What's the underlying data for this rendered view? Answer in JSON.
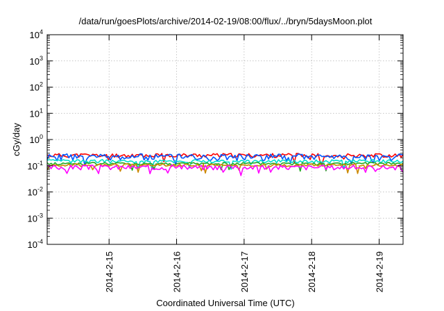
{
  "chart_data": {
    "type": "line",
    "title": "/data/run/goesPlots/archive/2014-02-19/08:00/flux/../bryn/5daysMoon.plot",
    "xlabel": "Coordinated Universal Time (UTC)",
    "ylabel": "cGy/day",
    "yscale": "log",
    "ylim": [
      0.0001,
      10000
    ],
    "xlim": [
      "2014-02-14 02:00",
      "2014-02-19 08:30"
    ],
    "grid": true,
    "y_ticks": [
      {
        "base": "10",
        "exp": "-4"
      },
      {
        "base": "10",
        "exp": "-3"
      },
      {
        "base": "10",
        "exp": "-2"
      },
      {
        "base": "10",
        "exp": "-1"
      },
      {
        "base": "10",
        "exp": "0"
      },
      {
        "base": "10",
        "exp": "1"
      },
      {
        "base": "10",
        "exp": "2"
      },
      {
        "base": "10",
        "exp": "3"
      },
      {
        "base": "10",
        "exp": "4"
      }
    ],
    "x_ticks": [
      {
        "label": "2014-2-15",
        "date": "2014-02-15 00:00"
      },
      {
        "label": "2014-2-16",
        "date": "2014-02-16 00:00"
      },
      {
        "label": "2014-2-17",
        "date": "2014-02-17 00:00"
      },
      {
        "label": "2014-2-18",
        "date": "2014-02-18 00:00"
      },
      {
        "label": "2014-2-19",
        "date": "2014-02-19 00:00"
      }
    ],
    "series": [
      {
        "color": "#ff0000",
        "mean": 0.25,
        "jitter": 0.06,
        "seed": 11,
        "x": [
          "2014-02-14 02:00",
          "2014-02-19 08:30"
        ],
        "y": [
          0.25,
          0.25
        ]
      },
      {
        "color": "#0055ff",
        "mean": 0.22,
        "jitter": 0.1,
        "seed": 23,
        "x": [
          "2014-02-14 02:00",
          "2014-02-19 08:30"
        ],
        "y": [
          0.22,
          0.22
        ]
      },
      {
        "color": "#00ddcc",
        "mean": 0.15,
        "jitter": 0.05,
        "seed": 37,
        "x": [
          "2014-02-14 02:00",
          "2014-02-19 08:30"
        ],
        "y": [
          0.15,
          0.15
        ]
      },
      {
        "color": "#22aa22",
        "mean": 0.12,
        "jitter": 0.04,
        "seed": 41,
        "x": [
          "2014-02-14 02:00",
          "2014-02-19 08:30"
        ],
        "y": [
          0.12,
          0.12
        ]
      },
      {
        "color": "#cc8800",
        "mean": 0.105,
        "jitter": 0.04,
        "seed": 53,
        "x": [
          "2014-02-14 02:00",
          "2014-02-19 08:30"
        ],
        "y": [
          0.105,
          0.105
        ]
      },
      {
        "color": "#ff00ff",
        "mean": 0.088,
        "jitter": 0.07,
        "seed": 67,
        "x": [
          "2014-02-14 02:00",
          "2014-02-19 08:30"
        ],
        "y": [
          0.088,
          0.088
        ]
      }
    ]
  }
}
